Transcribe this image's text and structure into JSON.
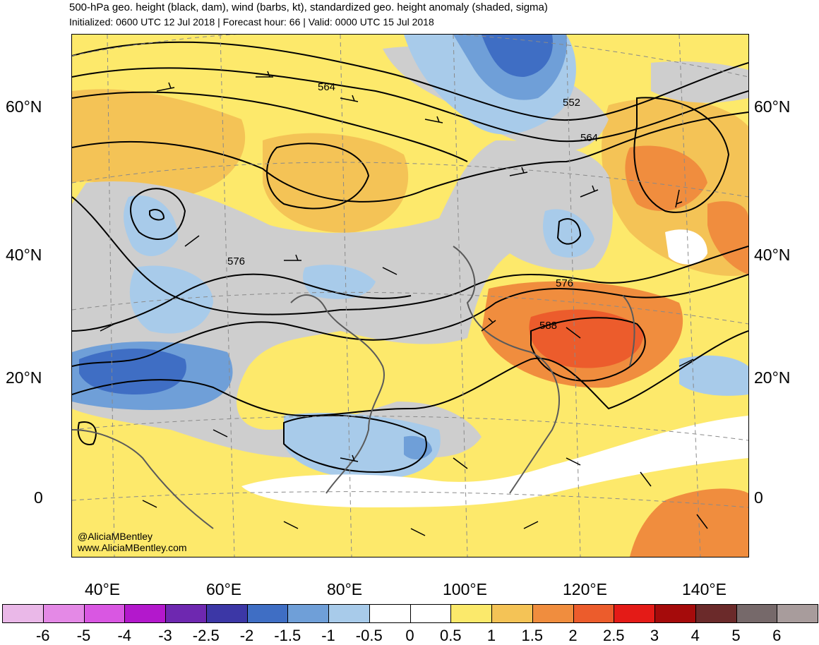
{
  "header": {
    "title": "500-hPa geo. height (black, dam), wind (barbs, kt), standardized geo. height anomaly (shaded, sigma)",
    "subtitle": "Initialized: 0600 UTC 12 Jul 2018 | Forecast hour: 66 | Valid: 0000 UTC 15 Jul 2018"
  },
  "map": {
    "lat_labels_left": [
      "60°N",
      "40°N",
      "20°N",
      "0"
    ],
    "lat_labels_right": [
      "60°N",
      "40°N",
      "20°N",
      "0"
    ],
    "lon_labels": [
      "40°E",
      "60°E",
      "80°E",
      "100°E",
      "120°E",
      "140°E"
    ],
    "contour_labels": [
      "564",
      "552",
      "564",
      "576",
      "576",
      "588"
    ],
    "credit_handle": "@AliciaMBentley",
    "credit_url": "www.AliciaMBentley.com"
  },
  "colorbar": {
    "labels": [
      "-6",
      "-5",
      "-4",
      "-3",
      "-2.5",
      "-2",
      "-1.5",
      "-1",
      "-0.5",
      "0",
      "0.5",
      "1",
      "1.5",
      "2",
      "2.5",
      "3",
      "4",
      "5",
      "6"
    ],
    "colors": [
      "#eab8e8",
      "#e489e6",
      "#d957e2",
      "#b318cc",
      "#6e28b0",
      "#3c37a6",
      "#3f6ec4",
      "#6f9fd8",
      "#a8cbea",
      "#ffffff",
      "#ffffff",
      "#fbe96b",
      "#f4c356",
      "#f08d3e",
      "#ec5c2c",
      "#e41b17",
      "#a50b0b",
      "#6b2a2a",
      "#76696a",
      "#a89c9c"
    ]
  }
}
